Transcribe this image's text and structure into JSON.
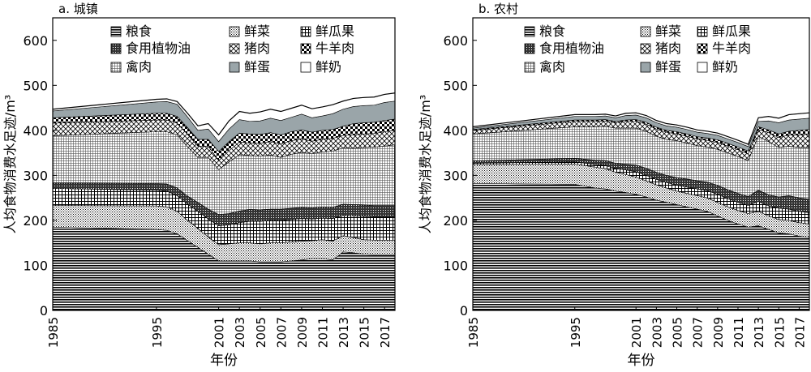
{
  "chart_data": [
    {
      "panel_label": "a. 城镇",
      "type": "area",
      "stacked": true,
      "xlabel": "年份",
      "ylabel": "人均食物消费水足迹/m³",
      "ylim": [
        0,
        650
      ],
      "yticks": [
        0,
        100,
        200,
        300,
        400,
        500,
        600
      ],
      "xticks": [
        1985,
        1995,
        2001,
        2003,
        2005,
        2007,
        2009,
        2011,
        2013,
        2015,
        2017
      ],
      "x": [
        1985,
        1995,
        1996,
        1997,
        1998,
        1999,
        2000,
        2001,
        2002,
        2003,
        2004,
        2005,
        2006,
        2007,
        2008,
        2009,
        2010,
        2011,
        2012,
        2013,
        2014,
        2015,
        2016,
        2017,
        2018
      ],
      "series": [
        {
          "name": "粮食",
          "values": [
            185,
            180,
            178,
            170,
            155,
            140,
            125,
            110,
            110,
            110,
            110,
            108,
            108,
            108,
            110,
            112,
            115,
            115,
            112,
            130,
            128,
            125,
            124,
            124,
            124
          ]
        },
        {
          "name": "鲜菜",
          "values": [
            48,
            52,
            52,
            50,
            45,
            42,
            38,
            36,
            38,
            40,
            40,
            40,
            42,
            42,
            42,
            42,
            40,
            42,
            42,
            36,
            34,
            32,
            32,
            32,
            32
          ]
        },
        {
          "name": "鲜瓜果",
          "values": [
            38,
            35,
            35,
            35,
            36,
            38,
            40,
            42,
            42,
            45,
            48,
            50,
            50,
            50,
            50,
            50,
            48,
            48,
            50,
            45,
            48,
            52,
            52,
            52,
            52
          ]
        },
        {
          "name": "食用植物油",
          "values": [
            12,
            15,
            16,
            17,
            18,
            20,
            22,
            25,
            25,
            26,
            26,
            25,
            25,
            25,
            25,
            25,
            25,
            25,
            25,
            25,
            25,
            25,
            25,
            25,
            25
          ]
        },
        {
          "name": "禽肉",
          "values": [
            105,
            115,
            116,
            118,
            110,
            100,
            115,
            100,
            115,
            125,
            120,
            120,
            120,
            115,
            120,
            122,
            120,
            122,
            125,
            125,
            125,
            128,
            130,
            132,
            135
          ]
        },
        {
          "name": "猪肉",
          "values": [
            28,
            26,
            26,
            26,
            27,
            25,
            25,
            20,
            25,
            28,
            28,
            28,
            30,
            30,
            30,
            30,
            28,
            28,
            28,
            28,
            30,
            30,
            30,
            32,
            32
          ]
        },
        {
          "name": "牛羊肉",
          "values": [
            12,
            15,
            15,
            15,
            15,
            15,
            15,
            20,
            20,
            20,
            20,
            20,
            20,
            20,
            20,
            20,
            20,
            20,
            20,
            20,
            25,
            25,
            25,
            25,
            25
          ]
        },
        {
          "name": "鲜蛋",
          "values": [
            15,
            25,
            26,
            27,
            24,
            20,
            23,
            22,
            28,
            30,
            28,
            30,
            32,
            32,
            32,
            35,
            32,
            32,
            35,
            38,
            38,
            38,
            38,
            40,
            40
          ]
        },
        {
          "name": "鲜奶",
          "values": [
            4,
            6,
            6,
            6,
            8,
            10,
            12,
            15,
            18,
            18,
            18,
            20,
            20,
            20,
            20,
            20,
            20,
            20,
            20,
            18,
            18,
            18,
            18,
            18,
            18
          ]
        }
      ]
    },
    {
      "panel_label": "b. 农村",
      "type": "area",
      "stacked": true,
      "xlabel": "年份",
      "ylabel": "人均食物消费水足迹/m³",
      "ylim": [
        0,
        650
      ],
      "yticks": [
        0,
        100,
        200,
        300,
        400,
        500,
        600
      ],
      "xticks": [
        1985,
        1995,
        2001,
        2003,
        2005,
        2007,
        2009,
        2011,
        2013,
        2015,
        2017
      ],
      "x": [
        1985,
        1995,
        1996,
        1997,
        1998,
        1999,
        2000,
        2001,
        2002,
        2003,
        2004,
        2005,
        2006,
        2007,
        2008,
        2009,
        2010,
        2011,
        2012,
        2013,
        2014,
        2015,
        2016,
        2017,
        2018
      ],
      "series": [
        {
          "name": "粮食",
          "values": [
            282,
            280,
            276,
            272,
            270,
            265,
            262,
            258,
            252,
            245,
            240,
            235,
            230,
            225,
            220,
            210,
            200,
            192,
            185,
            188,
            180,
            172,
            170,
            165,
            162
          ]
        },
        {
          "name": "鲜菜",
          "values": [
            42,
            45,
            46,
            46,
            45,
            42,
            40,
            38,
            36,
            34,
            32,
            30,
            30,
            30,
            30,
            30,
            30,
            30,
            30,
            32,
            30,
            30,
            30,
            30,
            30
          ]
        },
        {
          "name": "鲜瓜果",
          "values": [
            3,
            5,
            5,
            6,
            7,
            8,
            10,
            12,
            12,
            12,
            12,
            13,
            14,
            15,
            16,
            18,
            18,
            18,
            18,
            22,
            22,
            25,
            25,
            25,
            25
          ]
        },
        {
          "name": "食用植物油",
          "values": [
            5,
            8,
            9,
            10,
            11,
            12,
            13,
            15,
            16,
            16,
            16,
            17,
            18,
            18,
            19,
            20,
            20,
            20,
            20,
            25,
            25,
            25,
            30,
            30,
            30
          ]
        },
        {
          "name": "禽肉",
          "values": [
            60,
            70,
            72,
            74,
            76,
            78,
            80,
            82,
            82,
            80,
            80,
            82,
            80,
            78,
            78,
            80,
            82,
            82,
            80,
            120,
            118,
            110,
            110,
            112,
            115
          ]
        },
        {
          "name": "猪肉",
          "values": [
            8,
            12,
            12,
            12,
            12,
            12,
            15,
            15,
            16,
            16,
            16,
            15,
            15,
            15,
            15,
            15,
            15,
            15,
            15,
            15,
            20,
            22,
            25,
            28,
            30
          ]
        },
        {
          "name": "牛羊肉",
          "values": [
            2,
            3,
            3,
            3,
            3,
            3,
            3,
            4,
            4,
            4,
            4,
            5,
            5,
            5,
            5,
            6,
            6,
            6,
            6,
            6,
            6,
            8,
            8,
            10,
            10
          ]
        },
        {
          "name": "鲜蛋",
          "values": [
            3,
            8,
            8,
            8,
            8,
            8,
            10,
            10,
            10,
            10,
            10,
            10,
            10,
            10,
            10,
            10,
            10,
            10,
            10,
            12,
            20,
            25,
            25,
            25,
            25
          ]
        },
        {
          "name": "鲜奶",
          "values": [
            3,
            4,
            4,
            4,
            4,
            4,
            5,
            5,
            5,
            5,
            5,
            5,
            5,
            5,
            5,
            5,
            5,
            5,
            5,
            8,
            10,
            10,
            12,
            12,
            12
          ]
        }
      ]
    }
  ],
  "legend": {
    "items": [
      {
        "name": "粮食",
        "pattern": "hlines"
      },
      {
        "name": "鲜菜",
        "pattern": "dots"
      },
      {
        "name": "鲜瓜果",
        "pattern": "grid"
      },
      {
        "name": "食用植物油",
        "pattern": "dense-check"
      },
      {
        "name": "猪肉",
        "pattern": "diag-cross"
      },
      {
        "name": "牛羊肉",
        "pattern": "checker"
      },
      {
        "name": "禽肉",
        "pattern": "fine-grid"
      },
      {
        "name": "鲜蛋",
        "pattern": "solid-gray"
      },
      {
        "name": "鲜奶",
        "pattern": "white"
      }
    ]
  },
  "colors": {
    "axis": "#000000",
    "egg_gray": "#9aa5a9"
  }
}
